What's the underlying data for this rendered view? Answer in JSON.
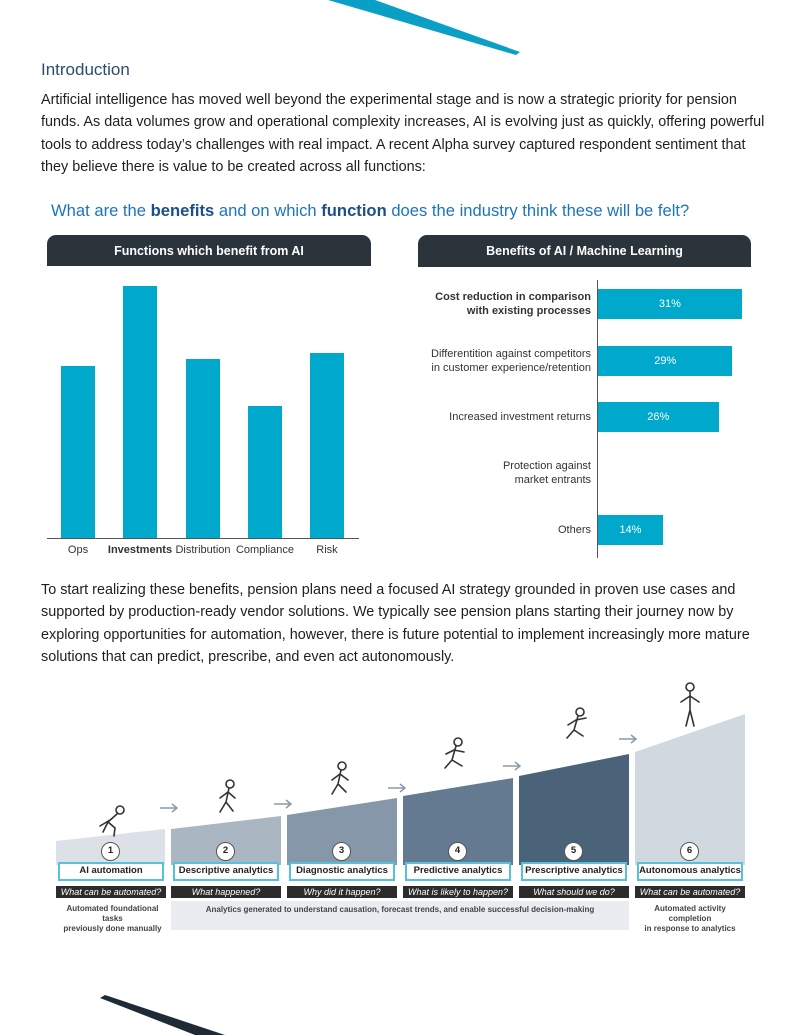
{
  "intro": {
    "heading": "Introduction",
    "paragraph": "Artificial intelligence has moved well beyond the experimental stage and is now a strategic priority for pension funds. As data volumes grow and operational complexity increases, AI is evolving just as quickly, offering powerful tools to address today’s challenges with real impact. A recent Alpha survey captured respondent sentiment that they believe there is value to be created across all functions:"
  },
  "question": {
    "part1": "What are the ",
    "bold1": "benefits",
    "part2": " and on which ",
    "bold2": "function",
    "part3": " does the industry think these will be felt?"
  },
  "colors": {
    "bar": "#00a9cc",
    "panel": "#2b333b",
    "accent": "#1c75bc"
  },
  "chart_data": [
    {
      "type": "bar",
      "title": "Functions which benefit from AI",
      "categories": [
        "Ops",
        "Investments",
        "Distribution",
        "Compliance",
        "Risk"
      ],
      "highlighted_category": "Investments",
      "values": [
        52,
        76,
        54,
        40,
        56
      ],
      "ylim": [
        0,
        80
      ]
    },
    {
      "type": "bar",
      "orientation": "horizontal",
      "title": "Benefits of AI / Machine Learning",
      "categories": [
        "Cost reduction in comparison with existing processes",
        "Differentition against competitors in customer experience/retention",
        "Increased investment returns",
        "Protection against market entrants",
        "Others"
      ],
      "values": [
        31,
        29,
        26,
        null,
        14
      ],
      "labels": [
        "31%",
        "29%",
        "26%",
        "",
        "14%"
      ],
      "xlim": [
        0,
        33
      ]
    }
  ],
  "bar_label_lines": [
    [
      "Cost reduction in comparison",
      "with existing processes"
    ],
    [
      "Differentition against competitors",
      "in customer experience/retention"
    ],
    [
      "Increased investment returns"
    ],
    [
      "Protection against",
      "market entrants"
    ],
    [
      "Others"
    ]
  ],
  "strategy": {
    "paragraph": "To start realizing these benefits, pension plans need a focused AI strategy grounded in proven use cases and supported by production-ready vendor solutions. We typically see pension plans starting their journey now by exploring opportunities for automation, however, there is future potential to implement increasingly more mature solutions that can predict, prescribe, and even act autonomously."
  },
  "stages": [
    {
      "num": "1",
      "label": "AI automation",
      "question": "What can be automated?",
      "fill": "#dbe1e7"
    },
    {
      "num": "2",
      "label": "Descriptive analytics",
      "question": "What happened?",
      "fill": "#aab6c2"
    },
    {
      "num": "3",
      "label": "Diagnostic analytics",
      "question": "Why did it happen?",
      "fill": "#8597a9"
    },
    {
      "num": "4",
      "label": "Predictive analytics",
      "question": "What is likely to happen?",
      "fill": "#637a91"
    },
    {
      "num": "5",
      "label": "Prescriptive analytics",
      "question": "What should we do?",
      "fill": "#4b6379"
    },
    {
      "num": "6",
      "label": "Autonomous analytics",
      "question": "What can be automated?",
      "fill": "#d0d8e0"
    }
  ],
  "notes": {
    "left": [
      "Automated foundational tasks",
      "previously done manually"
    ],
    "middle": "Analytics generated to understand causation, forecast trends, and enable successful decision-making",
    "right": [
      "Automated activity completion",
      "in response to analytics"
    ]
  }
}
